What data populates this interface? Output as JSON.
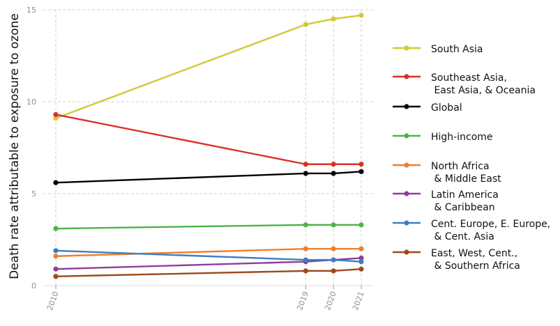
{
  "chart_data": {
    "type": "line",
    "ylabel": "Death rate attributable to exposure to ozone",
    "xlabel": "",
    "x": [
      2010,
      2019,
      2020,
      2021
    ],
    "x_tick_labels": [
      "2010",
      "2019",
      "2020",
      "2021"
    ],
    "ylim": [
      0,
      15
    ],
    "y_ticks": [
      0,
      5,
      10,
      15
    ],
    "grid": true,
    "legend_position": "right",
    "series": [
      {
        "name": "South Asia",
        "color": "#d4c735",
        "values": [
          9.1,
          14.2,
          14.5,
          14.7
        ]
      },
      {
        "name": "Southeast Asia,\n East Asia, & Oceania",
        "color": "#d9302b",
        "values": [
          9.3,
          6.6,
          6.6,
          6.6
        ]
      },
      {
        "name": "Global",
        "color": "#000000",
        "values": [
          5.6,
          6.1,
          6.1,
          6.2
        ]
      },
      {
        "name": "High-income",
        "color": "#4db34a",
        "values": [
          3.1,
          3.3,
          3.3,
          3.3
        ]
      },
      {
        "name": "North Africa\n & Middle East",
        "color": "#ef7f2c",
        "values": [
          1.6,
          2.0,
          2.0,
          2.0
        ]
      },
      {
        "name": "Latin America\n & Caribbean",
        "color": "#8e3f98",
        "values": [
          0.9,
          1.3,
          1.4,
          1.5
        ]
      },
      {
        "name": "Cent. Europe, E. Europe,\n & Cent. Asia",
        "color": "#3d7fbf",
        "values": [
          1.9,
          1.4,
          1.4,
          1.3
        ]
      },
      {
        "name": "East, West, Cent.,\n & Southern Africa",
        "color": "#9c4a1e",
        "values": [
          0.5,
          0.8,
          0.8,
          0.9
        ]
      }
    ]
  }
}
